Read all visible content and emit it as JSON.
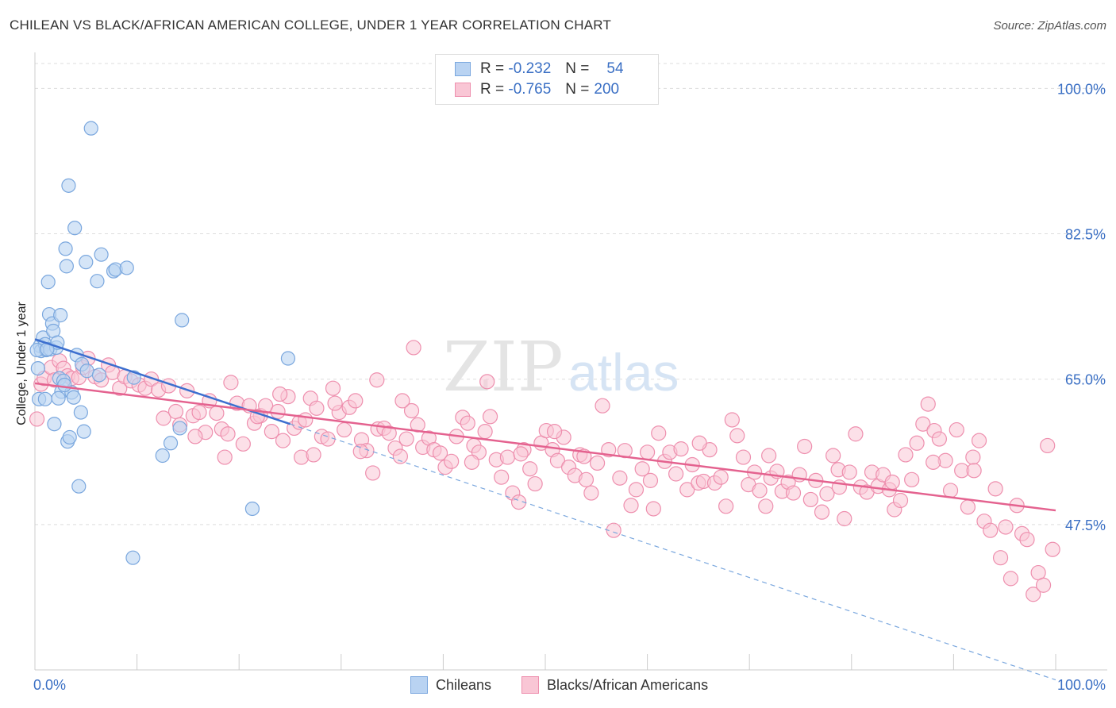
{
  "title": "CHILEAN VS BLACK/AFRICAN AMERICAN COLLEGE, UNDER 1 YEAR CORRELATION CHART",
  "source": "Source: ZipAtlas.com",
  "watermark": {
    "zip": "ZIP",
    "atlas": "atlas"
  },
  "colors": {
    "blue_fill": "#b9d3f2",
    "blue_stroke": "#7aa7de",
    "blue_line": "#3c6fcf",
    "pink_fill": "#f9c6d5",
    "pink_stroke": "#ee8fae",
    "pink_line": "#e4628f",
    "axis_text": "#3a6fc4",
    "grid": "#dddddd"
  },
  "legend": {
    "r_label": "R =",
    "n_label": "N =",
    "rows": [
      {
        "r": "-0.232",
        "n": "54"
      },
      {
        "r": "-0.765",
        "n": "200"
      }
    ]
  },
  "bottom_legend": {
    "chileans": "Chileans",
    "blacks": "Blacks/African Americans"
  },
  "chart_data": {
    "type": "scatter",
    "title": "CHILEAN VS BLACK/AFRICAN AMERICAN COLLEGE, UNDER 1 YEAR CORRELATION CHART",
    "xlabel": "",
    "ylabel": "College, Under 1 year",
    "xlim": [
      0,
      100
    ],
    "ylim": [
      30,
      103
    ],
    "x_tick_labels": [
      "0.0%",
      "100.0%"
    ],
    "y_ticks": [
      100.0,
      82.5,
      65.0,
      47.5
    ],
    "y_tick_labels": [
      "100.0%",
      "82.5%",
      "65.0%",
      "47.5%"
    ],
    "series": [
      {
        "name": "Chileans",
        "r": -0.232,
        "n": 54,
        "trend": {
          "x0": 0,
          "y0": 69.8,
          "x1": 25,
          "y1": 59.6,
          "dashed_to_x": 100,
          "dashed_to_y": 28.8
        },
        "points": [
          [
            0.3,
            66.3
          ],
          [
            0.5,
            69.0
          ],
          [
            0.6,
            68.4
          ],
          [
            0.8,
            70.0
          ],
          [
            1.0,
            69.2
          ],
          [
            1.1,
            68.5
          ],
          [
            1.3,
            76.7
          ],
          [
            1.4,
            72.8
          ],
          [
            1.5,
            68.6
          ],
          [
            1.7,
            71.7
          ],
          [
            1.8,
            70.8
          ],
          [
            1.9,
            59.6
          ],
          [
            2.1,
            68.8
          ],
          [
            2.2,
            69.4
          ],
          [
            2.4,
            65.1
          ],
          [
            2.5,
            72.7
          ],
          [
            2.6,
            63.5
          ],
          [
            2.8,
            64.8
          ],
          [
            3.0,
            80.7
          ],
          [
            3.1,
            78.6
          ],
          [
            3.2,
            57.5
          ],
          [
            3.3,
            88.3
          ],
          [
            3.4,
            58.0
          ],
          [
            3.6,
            63.4
          ],
          [
            3.8,
            62.8
          ],
          [
            3.9,
            83.2
          ],
          [
            4.1,
            67.9
          ],
          [
            4.3,
            52.1
          ],
          [
            4.5,
            61.0
          ],
          [
            4.6,
            66.8
          ],
          [
            4.8,
            58.7
          ],
          [
            5.0,
            79.1
          ],
          [
            5.1,
            66.0
          ],
          [
            5.5,
            95.2
          ],
          [
            6.1,
            76.8
          ],
          [
            6.3,
            65.5
          ],
          [
            6.5,
            80.0
          ],
          [
            7.7,
            78.0
          ],
          [
            7.9,
            78.2
          ],
          [
            9.0,
            78.4
          ],
          [
            9.6,
            43.5
          ],
          [
            9.7,
            65.2
          ],
          [
            12.5,
            55.8
          ],
          [
            13.3,
            57.3
          ],
          [
            14.2,
            59.1
          ],
          [
            14.4,
            72.1
          ],
          [
            21.3,
            49.4
          ],
          [
            24.8,
            67.5
          ],
          [
            0.4,
            62.6
          ],
          [
            1.0,
            62.6
          ],
          [
            0.2,
            68.5
          ],
          [
            1.2,
            68.6
          ],
          [
            2.9,
            64.3
          ],
          [
            2.3,
            62.7
          ]
        ]
      },
      {
        "name": "Blacks/African Americans",
        "r": -0.765,
        "n": 200,
        "trend": {
          "x0": 0,
          "y0": 64.5,
          "x1": 100,
          "y1": 49.2
        },
        "points": [
          [
            0.2,
            60.2
          ],
          [
            0.6,
            64.4
          ],
          [
            0.9,
            65.1
          ],
          [
            1.6,
            66.4
          ],
          [
            1.9,
            64.9
          ],
          [
            2.4,
            67.2
          ],
          [
            2.8,
            66.3
          ],
          [
            3.2,
            65.4
          ],
          [
            3.6,
            65.1
          ],
          [
            4.3,
            65.2
          ],
          [
            4.7,
            66.4
          ],
          [
            5.2,
            67.5
          ],
          [
            5.9,
            65.3
          ],
          [
            6.5,
            64.9
          ],
          [
            7.2,
            66.7
          ],
          [
            7.6,
            65.8
          ],
          [
            8.3,
            63.9
          ],
          [
            8.8,
            65.3
          ],
          [
            9.4,
            64.8
          ],
          [
            10.2,
            64.3
          ],
          [
            10.8,
            63.9
          ],
          [
            11.4,
            65.0
          ],
          [
            12.1,
            63.7
          ],
          [
            12.6,
            60.3
          ],
          [
            13.1,
            64.2
          ],
          [
            13.8,
            61.1
          ],
          [
            14.2,
            59.5
          ],
          [
            14.9,
            63.6
          ],
          [
            15.5,
            60.6
          ],
          [
            16.1,
            61.0
          ],
          [
            16.7,
            58.6
          ],
          [
            17.1,
            62.4
          ],
          [
            17.8,
            60.9
          ],
          [
            18.3,
            59.0
          ],
          [
            18.9,
            58.4
          ],
          [
            19.2,
            64.6
          ],
          [
            19.8,
            62.1
          ],
          [
            20.4,
            57.2
          ],
          [
            21.0,
            61.8
          ],
          [
            21.5,
            59.7
          ],
          [
            22.1,
            60.6
          ],
          [
            22.6,
            61.8
          ],
          [
            23.2,
            58.7
          ],
          [
            23.8,
            61.1
          ],
          [
            24.3,
            57.6
          ],
          [
            24.8,
            62.9
          ],
          [
            25.4,
            59.1
          ],
          [
            25.9,
            59.8
          ],
          [
            26.5,
            60.1
          ],
          [
            27.0,
            62.7
          ],
          [
            27.6,
            61.5
          ],
          [
            28.1,
            58.1
          ],
          [
            28.7,
            57.8
          ],
          [
            29.2,
            63.9
          ],
          [
            29.8,
            61.0
          ],
          [
            30.3,
            58.9
          ],
          [
            30.8,
            61.6
          ],
          [
            31.4,
            62.4
          ],
          [
            32.0,
            57.7
          ],
          [
            32.5,
            56.4
          ],
          [
            33.1,
            53.7
          ],
          [
            33.6,
            59.0
          ],
          [
            34.2,
            59.1
          ],
          [
            34.7,
            58.5
          ],
          [
            35.3,
            56.7
          ],
          [
            35.8,
            55.7
          ],
          [
            36.4,
            57.8
          ],
          [
            36.9,
            61.2
          ],
          [
            37.5,
            59.5
          ],
          [
            38.0,
            56.8
          ],
          [
            38.6,
            57.9
          ],
          [
            39.1,
            56.5
          ],
          [
            39.7,
            56.1
          ],
          [
            40.2,
            54.4
          ],
          [
            40.8,
            55.1
          ],
          [
            41.3,
            58.1
          ],
          [
            41.9,
            60.4
          ],
          [
            42.4,
            59.7
          ],
          [
            43.0,
            57.0
          ],
          [
            43.5,
            56.2
          ],
          [
            44.1,
            58.7
          ],
          [
            44.6,
            60.5
          ],
          [
            45.2,
            55.3
          ],
          [
            45.7,
            53.2
          ],
          [
            46.3,
            55.6
          ],
          [
            46.8,
            51.3
          ],
          [
            47.4,
            50.2
          ],
          [
            47.9,
            56.5
          ],
          [
            48.5,
            54.2
          ],
          [
            49.0,
            52.4
          ],
          [
            49.6,
            57.3
          ],
          [
            50.1,
            58.8
          ],
          [
            50.7,
            56.5
          ],
          [
            51.2,
            55.2
          ],
          [
            51.8,
            58.0
          ],
          [
            52.3,
            54.4
          ],
          [
            52.9,
            53.4
          ],
          [
            53.4,
            55.9
          ],
          [
            54.0,
            52.9
          ],
          [
            54.5,
            51.3
          ],
          [
            55.1,
            54.9
          ],
          [
            55.6,
            61.8
          ],
          [
            56.2,
            56.5
          ],
          [
            56.7,
            46.8
          ],
          [
            57.3,
            53.1
          ],
          [
            57.8,
            56.4
          ],
          [
            58.4,
            49.8
          ],
          [
            58.9,
            51.7
          ],
          [
            59.5,
            54.2
          ],
          [
            60.0,
            56.2
          ],
          [
            60.6,
            49.4
          ],
          [
            61.1,
            58.5
          ],
          [
            61.7,
            55.1
          ],
          [
            62.2,
            56.2
          ],
          [
            62.8,
            53.6
          ],
          [
            63.3,
            56.6
          ],
          [
            63.9,
            51.7
          ],
          [
            64.4,
            54.7
          ],
          [
            65.0,
            52.5
          ],
          [
            65.5,
            52.7
          ],
          [
            66.1,
            56.5
          ],
          [
            66.6,
            52.5
          ],
          [
            67.2,
            53.2
          ],
          [
            67.7,
            49.7
          ],
          [
            68.3,
            60.1
          ],
          [
            68.8,
            58.2
          ],
          [
            69.4,
            55.6
          ],
          [
            69.9,
            52.3
          ],
          [
            70.5,
            53.8
          ],
          [
            71.0,
            51.6
          ],
          [
            71.6,
            49.7
          ],
          [
            72.1,
            53.1
          ],
          [
            72.7,
            53.9
          ],
          [
            73.2,
            51.5
          ],
          [
            73.8,
            52.6
          ],
          [
            74.3,
            51.3
          ],
          [
            74.9,
            53.5
          ],
          [
            75.4,
            56.9
          ],
          [
            76.0,
            50.5
          ],
          [
            76.5,
            52.8
          ],
          [
            77.1,
            49.0
          ],
          [
            77.6,
            51.2
          ],
          [
            78.2,
            55.8
          ],
          [
            78.7,
            54.1
          ],
          [
            79.3,
            48.2
          ],
          [
            79.8,
            53.8
          ],
          [
            80.4,
            58.4
          ],
          [
            80.9,
            52.0
          ],
          [
            81.5,
            51.4
          ],
          [
            82.0,
            53.8
          ],
          [
            82.6,
            52.1
          ],
          [
            83.1,
            53.5
          ],
          [
            83.7,
            51.7
          ],
          [
            84.2,
            49.3
          ],
          [
            84.8,
            50.4
          ],
          [
            85.3,
            55.9
          ],
          [
            85.9,
            52.9
          ],
          [
            86.4,
            57.3
          ],
          [
            87.0,
            59.6
          ],
          [
            87.5,
            62.0
          ],
          [
            88.1,
            58.8
          ],
          [
            88.6,
            57.8
          ],
          [
            89.2,
            55.2
          ],
          [
            89.7,
            51.6
          ],
          [
            90.3,
            58.9
          ],
          [
            90.8,
            54.0
          ],
          [
            91.4,
            49.6
          ],
          [
            91.9,
            55.6
          ],
          [
            92.5,
            57.6
          ],
          [
            93.0,
            47.9
          ],
          [
            93.6,
            46.8
          ],
          [
            94.1,
            51.8
          ],
          [
            94.6,
            43.5
          ],
          [
            95.1,
            47.2
          ],
          [
            95.6,
            41.0
          ],
          [
            96.2,
            49.8
          ],
          [
            96.7,
            46.4
          ],
          [
            97.2,
            45.7
          ],
          [
            97.8,
            39.1
          ],
          [
            98.3,
            41.7
          ],
          [
            98.8,
            40.2
          ],
          [
            99.2,
            57.0
          ],
          [
            99.7,
            44.5
          ],
          [
            24.0,
            63.2
          ],
          [
            26.1,
            55.6
          ],
          [
            37.1,
            68.8
          ],
          [
            33.5,
            64.9
          ],
          [
            44.3,
            64.7
          ],
          [
            50.9,
            58.7
          ],
          [
            29.4,
            62.1
          ],
          [
            65.1,
            57.3
          ],
          [
            71.9,
            55.8
          ],
          [
            78.8,
            52.0
          ],
          [
            84.0,
            52.6
          ],
          [
            88.0,
            55.0
          ],
          [
            92.0,
            54.0
          ],
          [
            60.3,
            52.8
          ],
          [
            53.8,
            55.7
          ],
          [
            47.6,
            56.0
          ],
          [
            42.8,
            55.0
          ],
          [
            36.0,
            62.4
          ],
          [
            31.9,
            56.3
          ],
          [
            27.3,
            55.9
          ],
          [
            21.8,
            60.5
          ],
          [
            18.6,
            55.6
          ],
          [
            15.7,
            58.1
          ]
        ]
      }
    ]
  }
}
